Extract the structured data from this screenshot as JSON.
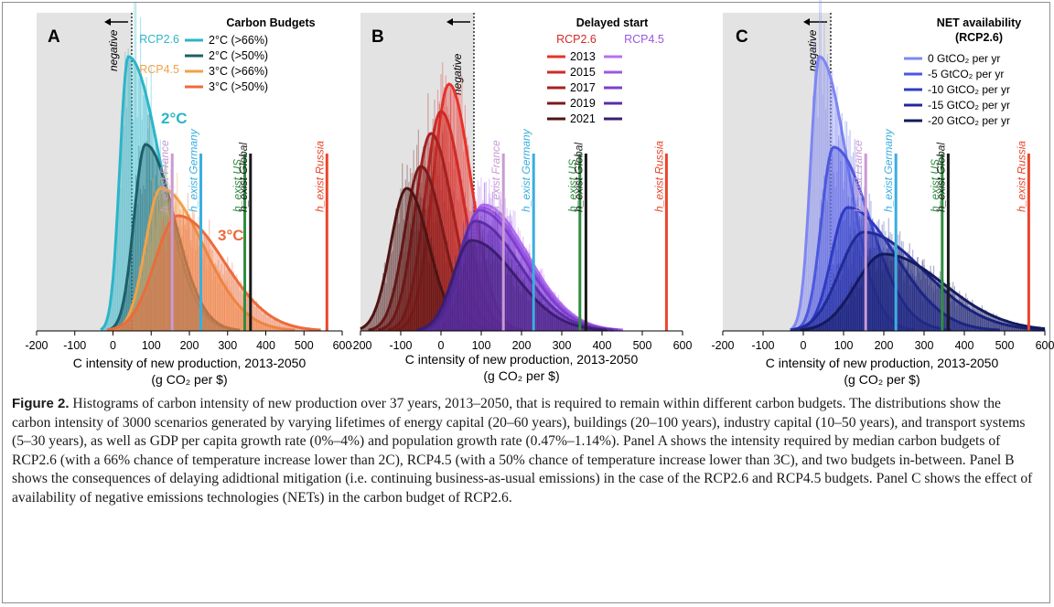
{
  "figure_label": "Figure 2.",
  "caption": "Histograms of carbon intensity of new production over 37 years, 2013–2050, that is required to remain within different carbon budgets. The distributions show the carbon intensity of 3000 scenarios generated by varying lifetimes of energy capital (20–60 years), buildings (20–100 years), industry capital (10–50 years), and transport systems (5–30 years), as well as GDP per capita growth rate (0%–4%) and population growth rate (0.47%–1.14%). Panel A shows the intensity required by median carbon budgets of RCP2.6 (with a 66% chance of temperature increase lower than 2C), RCP4.5 (with a 50% chance of temperature increase lower than 3C), and two budgets in-between. Panel B shows the consequences of delaying adidtional mitigation (i.e. continuing business-as-usual emissions) in the case of the RCP2.6 and RCP4.5 budgets. Panel C shows the effect of availability of negative emissions technologies (NETs) in the carbon budget of RCP2.6.",
  "colors": {
    "grey_region": "#e3e3e3",
    "france": "#c99ad3",
    "germany": "#3aaede",
    "us": "#2f8d3f",
    "global": "#1a1a1a",
    "russia": "#e8462c"
  },
  "shared": {
    "x_ticks": [
      "-200",
      "-100",
      "0",
      "100",
      "200",
      "300",
      "400",
      "500",
      "600"
    ],
    "xlabel_line1": "C intensity of new production, 2013-2050",
    "xlabel_line2": "(g CO₂ per $)",
    "negative_label": "negative",
    "france_label": "h_exist France",
    "germany_label": "h_exist Germany",
    "us_label": "h_exist US",
    "global_label": "h_exist Global",
    "russia_label": "h_exist Russia"
  },
  "chart_data": [
    {
      "type": "area",
      "panel": "A",
      "xlim": [
        -200,
        600
      ],
      "x_ticks": [
        -200,
        -100,
        0,
        100,
        200,
        300,
        400,
        500,
        600
      ],
      "title": "Carbon Budgets",
      "rcp26_label": "RCP2.6",
      "rcp45_label": "RCP4.5",
      "annotation_2c": "2°C",
      "annotation_3c": "3°C",
      "vertical_lines": {
        "France": 155,
        "Germany": 230,
        "US": 345,
        "Global": 360,
        "Russia": 560
      },
      "series": [
        {
          "name": "2°C (>66%)",
          "color": "#2cb5c8",
          "peak_x": 40,
          "peak_height": 1.0
        },
        {
          "name": "2°C (>50%)",
          "color": "#1d5f68",
          "peak_x": 85,
          "peak_height": 0.68
        },
        {
          "name": "3°C (>66%)",
          "color": "#f0a24a",
          "peak_x": 125,
          "peak_height": 0.52
        },
        {
          "name": "3°C (>50%)",
          "color": "#ec6b3b",
          "peak_x": 170,
          "peak_height": 0.42
        }
      ]
    },
    {
      "type": "area",
      "panel": "B",
      "xlim": [
        -200,
        600
      ],
      "x_ticks": [
        -200,
        -100,
        0,
        100,
        200,
        300,
        400,
        500,
        600
      ],
      "title": "Delayed start",
      "rcp26_label": "RCP2.6",
      "rcp45_label": "RCP4.5",
      "legend_years": [
        "2013",
        "2015",
        "2017",
        "2019",
        "2021"
      ],
      "vertical_lines": {
        "France": 155,
        "Germany": 230,
        "US": 345,
        "Global": 360,
        "Russia": 560
      },
      "series": [
        {
          "name": "RCP2.6 2013",
          "color": "#e8322a",
          "peak_x": 20,
          "peak_height": 0.9
        },
        {
          "name": "RCP2.6 2015",
          "color": "#d02a26",
          "peak_x": 0,
          "peak_height": 0.8
        },
        {
          "name": "RCP2.6 2017",
          "color": "#a52221",
          "peak_x": -25,
          "peak_height": 0.72
        },
        {
          "name": "RCP2.6 2019",
          "color": "#7a1c1a",
          "peak_x": -50,
          "peak_height": 0.6
        },
        {
          "name": "RCP2.6 2021",
          "color": "#4e1413",
          "peak_x": -85,
          "peak_height": 0.52
        },
        {
          "name": "RCP4.5 2013",
          "color": "#b472f0",
          "peak_x": 105,
          "peak_height": 0.46
        },
        {
          "name": "RCP4.5 2015",
          "color": "#9b58e4",
          "peak_x": 100,
          "peak_height": 0.45
        },
        {
          "name": "RCP4.5 2017",
          "color": "#7d3fce",
          "peak_x": 95,
          "peak_height": 0.44
        },
        {
          "name": "RCP4.5 2019",
          "color": "#5b2ea8",
          "peak_x": 85,
          "peak_height": 0.4
        },
        {
          "name": "RCP4.5 2021",
          "color": "#3c1d70",
          "peak_x": 75,
          "peak_height": 0.33
        }
      ]
    },
    {
      "type": "area",
      "panel": "C",
      "xlim": [
        -200,
        600
      ],
      "x_ticks": [
        -200,
        -100,
        0,
        100,
        200,
        300,
        400,
        500,
        600
      ],
      "title_line1": "NET availability",
      "title_line2": "(RCP2.6)",
      "vertical_lines": {
        "France": 155,
        "Germany": 230,
        "US": 345,
        "Global": 360,
        "Russia": 560
      },
      "series": [
        {
          "name": "0 GtCO₂ per yr",
          "color": "#7f86f2",
          "peak_x": 40,
          "peak_height": 1.0
        },
        {
          "name": "-5 GtCO₂ per yr",
          "color": "#4d57de",
          "peak_x": 75,
          "peak_height": 0.67
        },
        {
          "name": "-10 GtCO₂ per yr",
          "color": "#2e3bc4",
          "peak_x": 110,
          "peak_height": 0.45
        },
        {
          "name": "-15 GtCO₂ per yr",
          "color": "#222a96",
          "peak_x": 150,
          "peak_height": 0.36
        },
        {
          "name": "-20 GtCO₂ per yr",
          "color": "#141a5e",
          "peak_x": 200,
          "peak_height": 0.28
        }
      ]
    }
  ]
}
